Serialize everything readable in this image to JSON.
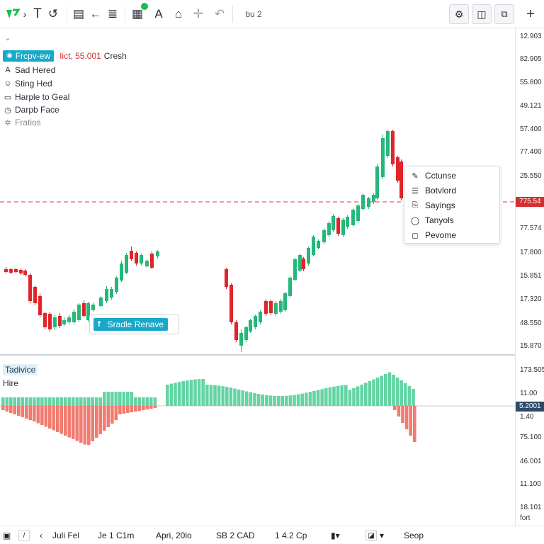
{
  "toolbar": {
    "logo_icon": "brand-logo-icon",
    "text_tool": "T",
    "symbol": "bu 2",
    "brand_green": "#1db954",
    "items": [
      {
        "name": "cursor-icon",
        "glyph": "›"
      },
      {
        "name": "text-tool-icon",
        "glyph": "T"
      },
      {
        "name": "circle-arrow-icon",
        "glyph": "↺"
      },
      {
        "name": "document-icon",
        "glyph": "▤"
      },
      {
        "name": "arrow-left-icon",
        "glyph": "←"
      },
      {
        "name": "grid-icon",
        "glyph": "▦"
      },
      {
        "name": "pen-icon",
        "glyph": "A"
      },
      {
        "name": "home-icon",
        "glyph": "⌂"
      },
      {
        "name": "move-icon",
        "glyph": "✛"
      },
      {
        "name": "undo-icon",
        "glyph": "↶"
      }
    ],
    "right": [
      {
        "name": "settings-icon",
        "glyph": "⚙"
      },
      {
        "name": "layout-icon",
        "glyph": "◫"
      },
      {
        "name": "screenshot-icon",
        "glyph": "⧉"
      },
      {
        "name": "add-icon",
        "glyph": "+"
      }
    ]
  },
  "legend": {
    "title_badge": "Frcpv-ew",
    "price_red": "Iict, 55.001",
    "suffix": "Cresh",
    "items": [
      {
        "icon": "A",
        "icon_name": "text-a-icon",
        "label": "Sad Hered"
      },
      {
        "icon": "☺",
        "icon_name": "face-icon",
        "label": "Sting Hed"
      },
      {
        "icon": "▭",
        "icon_name": "box-icon",
        "label": "Harple to Geal"
      },
      {
        "icon": "◷",
        "icon_name": "clock-icon",
        "label": "Darpb Face"
      },
      {
        "icon": "✲",
        "icon_name": "star-icon",
        "label": "Fratios"
      }
    ]
  },
  "context_menu": {
    "items": [
      {
        "icon": "✎",
        "icon_name": "edit-icon",
        "label": "Cctunse"
      },
      {
        "icon": "☰",
        "icon_name": "lines-icon",
        "label": "Botvlord"
      },
      {
        "icon": "⎘",
        "icon_name": "copy-icon",
        "label": "Sayings"
      },
      {
        "icon": "◯",
        "icon_name": "circle-icon",
        "label": "Tanyols"
      },
      {
        "icon": "◻",
        "icon_name": "square-icon",
        "label": "Pevome"
      }
    ]
  },
  "remove_pill": {
    "icon": "f",
    "label": "Sradle Renave"
  },
  "price_axis": {
    "main_ticks": [
      "12.903",
      "82.905",
      "55.800",
      "49.121",
      "57.400",
      "77.400",
      "25.550",
      "77.574",
      "17.800",
      "15.851",
      "17.320",
      "48.550",
      "15.870"
    ],
    "current_price": "775.54",
    "current_price_color": "#d32f2f",
    "osc_ticks": [
      "173.505",
      "11.00",
      "1.40",
      "75.100",
      "46.001",
      "11.100",
      "18.101",
      "fort"
    ],
    "osc_value": "5.2001",
    "osc_value_color": "#2d4a6b"
  },
  "oscillator": {
    "badge": "Tadivice",
    "sub": "Hire"
  },
  "bottombar": {
    "items": [
      "Juli Fel",
      "Je 1 C1m",
      "Apri, 20lo",
      "SB 2 CAD",
      "1 4.2 Cp",
      "Seop"
    ]
  },
  "colors": {
    "up": "#26b77a",
    "down": "#e2242a",
    "hist_up": "#64d4a4",
    "hist_down": "#f07b70",
    "accent": "#17a9c9"
  }
}
